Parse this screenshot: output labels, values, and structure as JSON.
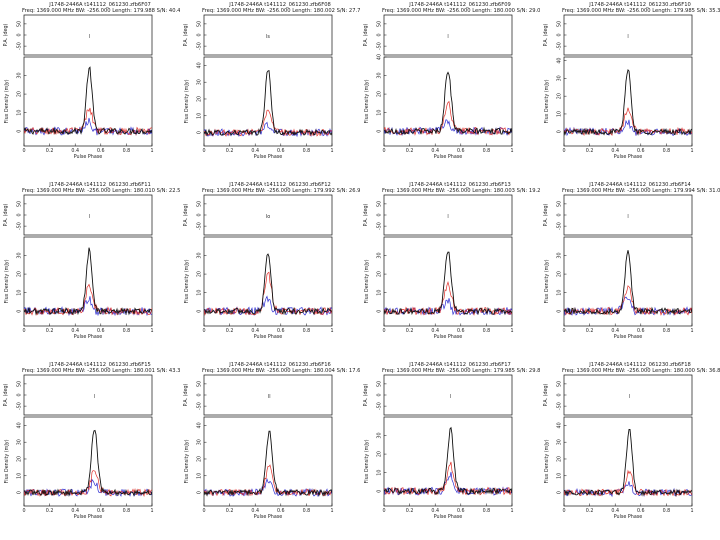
{
  "colors": {
    "total": "#111111",
    "linear": "#e0302a",
    "circular": "#2b2bd0"
  },
  "panels": [
    {
      "title": "J1748-2446A t141112_061230.zfb6F07",
      "info": "Freq: 1369.000 MHz  BW: -256.000  Length: 179.988  S/N: 40.422",
      "marker": "l"
    },
    {
      "title": "J1748-2446A t141112_061230.zfb6F08",
      "info": "Freq: 1369.000 MHz  BW: -256.000  Length: 180.002  S/N: 27.774",
      "marker": "ls"
    },
    {
      "title": "J1748-2446A t141112_061230.zfb6F09",
      "info": "Freq: 1369.000 MHz  BW: -256.000  Length: 180.000  S/N: 29.066",
      "marker": "l"
    },
    {
      "title": "J1748-2446A t141112_061230.zfb6F10",
      "info": "Freq: 1369.000 MHz  BW: -256.000  Length: 179.985  S/N: 35.315",
      "marker": "l"
    },
    {
      "title": "J1748-2446A t141112_061230.zfb6F11",
      "info": "Freq: 1369.000 MHz  BW: -256.000  Length: 180.010  S/N: 22.550",
      "marker": "l"
    },
    {
      "title": "J1748-2446A t141112_061230.zfb6F12",
      "info": "Freq: 1369.000 MHz  BW: -256.000  Length: 179.992  S/N: 26.950",
      "marker": "lo"
    },
    {
      "title": "J1748-2446A t141112_061230.zfb6F13",
      "info": "Freq: 1369.000 MHz  BW: -256.000  Length: 180.003  S/N: 19.261",
      "marker": "l"
    },
    {
      "title": "J1748-2446A t141112_061230.zfb6F14",
      "info": "Freq: 1369.000 MHz  BW: -256.000  Length: 179.994  S/N: 31.033",
      "marker": "l"
    },
    {
      "title": "J1748-2446A t141112_061230.zfb6F15",
      "info": "Freq: 1369.000 MHz  BW: -256.000  Length: 180.001  S/N: 43.359",
      "marker": "l"
    },
    {
      "title": "J1748-2446A t141112_061230.zfb6F16",
      "info": "Freq: 1369.000 MHz  BW: -256.000  Length: 180.004  S/N: 17.637",
      "marker": "ll"
    },
    {
      "title": "J1748-2446A t141112_061230.zfb6F17",
      "info": "Freq: 1369.000 MHz  BW: -256.000  Length: 179.985  S/N: 29.859",
      "marker": "l"
    },
    {
      "title": "J1748-2446A t141112_061230.zfb6F18",
      "info": "Freq: 1369.000 MHz  BW: -256.000  Length: 180.000  S/N: 36.837",
      "marker": "l"
    }
  ],
  "labels": {
    "pa_axis": "P.A. (deg)",
    "flux_axis": "Flux Density (mJy)",
    "x_axis": "Pulse Phase",
    "pa_ticks": [
      "50",
      "0",
      "-50"
    ]
  },
  "chart_data": {
    "type": "line",
    "xlabel": "Pulse Phase",
    "ylabel": "Flux Density (mJy)",
    "xlim": [
      0,
      1
    ],
    "x_ticks": [
      "0",
      "0.2",
      "0.4",
      "0.6",
      "0.8",
      "1"
    ],
    "pa_ylim": [
      -90,
      90
    ],
    "pa_ticks": [
      "50",
      "0",
      "-50"
    ],
    "grid": false,
    "panels": [
      {
        "peak_phase": 0.51,
        "ylim": [
          -8,
          40
        ],
        "y_ticks": [
          "0",
          "10",
          "20",
          "30"
        ],
        "series": [
          {
            "peak": 34,
            "width": 0.022
          },
          {
            "peak": 12,
            "width": 0.026
          },
          {
            "peak": 6,
            "width": 0.03
          }
        ]
      },
      {
        "peak_phase": 0.5,
        "ylim": [
          -8,
          45
        ],
        "y_ticks": [
          "0",
          "10",
          "20",
          "30",
          "40"
        ],
        "series": [
          {
            "peak": 38,
            "width": 0.022
          },
          {
            "peak": 13,
            "width": 0.026
          },
          {
            "peak": 5,
            "width": 0.03
          }
        ]
      },
      {
        "peak_phase": 0.5,
        "ylim": [
          -8,
          40
        ],
        "y_ticks": [
          "0",
          "10",
          "20",
          "30",
          "40"
        ],
        "series": [
          {
            "peak": 33,
            "width": 0.024
          },
          {
            "peak": 15,
            "width": 0.026
          },
          {
            "peak": 6,
            "width": 0.03
          }
        ]
      },
      {
        "peak_phase": 0.5,
        "ylim": [
          -8,
          42
        ],
        "y_ticks": [
          "0",
          "10",
          "20",
          "30",
          "40"
        ],
        "series": [
          {
            "peak": 36,
            "width": 0.022
          },
          {
            "peak": 13,
            "width": 0.026
          },
          {
            "peak": 6,
            "width": 0.03
          }
        ]
      },
      {
        "peak_phase": 0.51,
        "ylim": [
          -8,
          40
        ],
        "y_ticks": [
          "0",
          "10",
          "20",
          "30"
        ],
        "series": [
          {
            "peak": 33,
            "width": 0.022
          },
          {
            "peak": 14,
            "width": 0.026
          },
          {
            "peak": 7,
            "width": 0.03
          }
        ]
      },
      {
        "peak_phase": 0.5,
        "ylim": [
          -8,
          40
        ],
        "y_ticks": [
          "0",
          "10",
          "20",
          "30"
        ],
        "series": [
          {
            "peak": 32,
            "width": 0.022
          },
          {
            "peak": 20,
            "width": 0.026
          },
          {
            "peak": 7,
            "width": 0.03
          }
        ]
      },
      {
        "peak_phase": 0.5,
        "ylim": [
          -8,
          40
        ],
        "y_ticks": [
          "0",
          "10",
          "20",
          "30"
        ],
        "series": [
          {
            "peak": 33,
            "width": 0.024
          },
          {
            "peak": 15,
            "width": 0.026
          },
          {
            "peak": 6,
            "width": 0.03
          }
        ]
      },
      {
        "peak_phase": 0.5,
        "ylim": [
          -8,
          40
        ],
        "y_ticks": [
          "0",
          "10",
          "20",
          "30"
        ],
        "series": [
          {
            "peak": 34,
            "width": 0.022
          },
          {
            "peak": 13,
            "width": 0.026
          },
          {
            "peak": 8,
            "width": 0.03
          }
        ]
      },
      {
        "peak_phase": 0.55,
        "ylim": [
          -8,
          45
        ],
        "y_ticks": [
          "0",
          "10",
          "20",
          "30",
          "40"
        ],
        "series": [
          {
            "peak": 38,
            "width": 0.024
          },
          {
            "peak": 14,
            "width": 0.026
          },
          {
            "peak": 7,
            "width": 0.03
          }
        ]
      },
      {
        "peak_phase": 0.51,
        "ylim": [
          -8,
          45
        ],
        "y_ticks": [
          "0",
          "10",
          "20",
          "30",
          "40"
        ],
        "series": [
          {
            "peak": 36,
            "width": 0.024
          },
          {
            "peak": 16,
            "width": 0.026
          },
          {
            "peak": 8,
            "width": 0.03
          }
        ]
      },
      {
        "peak_phase": 0.52,
        "ylim": [
          -8,
          40
        ],
        "y_ticks": [
          "0",
          "10",
          "20",
          "30"
        ],
        "series": [
          {
            "peak": 33,
            "width": 0.024
          },
          {
            "peak": 14,
            "width": 0.026
          },
          {
            "peak": 9,
            "width": 0.03
          }
        ]
      },
      {
        "peak_phase": 0.51,
        "ylim": [
          -8,
          45
        ],
        "y_ticks": [
          "0",
          "10",
          "20",
          "30",
          "40"
        ],
        "series": [
          {
            "peak": 38,
            "width": 0.022
          },
          {
            "peak": 13,
            "width": 0.026
          },
          {
            "peak": 6,
            "width": 0.03
          }
        ]
      }
    ]
  }
}
